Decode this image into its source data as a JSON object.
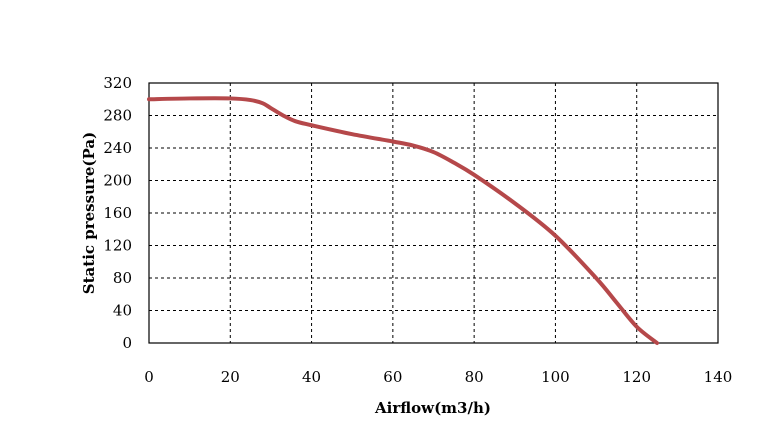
{
  "chart_data": {
    "type": "line",
    "title": "",
    "xlabel": "Airflow(m3/h)",
    "ylabel": "Static pressure(Pa)",
    "xlim": [
      0,
      140
    ],
    "ylim": [
      0,
      320
    ],
    "x_ticks": [
      "0",
      "20",
      "40",
      "60",
      "80",
      "100",
      "120",
      "140"
    ],
    "y_ticks": [
      "0",
      "40",
      "80",
      "120",
      "160",
      "200",
      "240",
      "280",
      "320"
    ],
    "grid": true,
    "grid_style": "dashed",
    "legend": "none",
    "series": [
      {
        "color": "#b5484a",
        "x": [
          0,
          10,
          20,
          25,
          28,
          30,
          33,
          36,
          40,
          50,
          60,
          65,
          70,
          75,
          80,
          90,
          100,
          110,
          115,
          120,
          125
        ],
        "y": [
          300,
          301,
          301,
          299,
          295,
          289,
          280,
          273,
          268,
          257,
          248,
          243,
          235,
          222,
          207,
          172,
          132,
          80,
          50,
          20,
          0
        ]
      }
    ]
  }
}
